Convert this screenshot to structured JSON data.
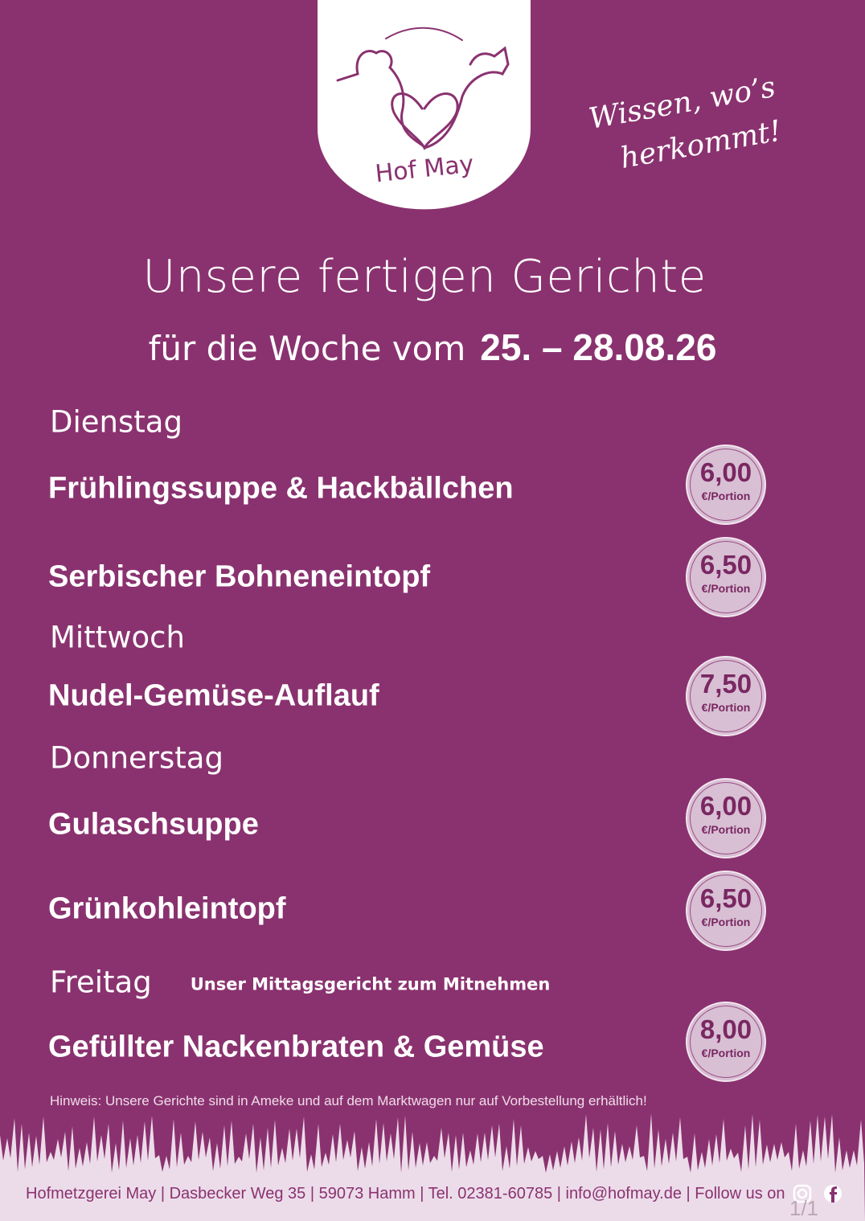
{
  "logo": {
    "name": "Hof May"
  },
  "slogan": {
    "line1": "Wissen, wo’s",
    "line2": "herkommt!"
  },
  "header": {
    "title": "Unsere fertigen Gerichte",
    "subtitle": "für die Woche vom",
    "date": "25. – 28.08.26"
  },
  "days": [
    {
      "day": "Dienstag",
      "dishes": [
        {
          "name": "Frühlingssuppe & Hackbällchen",
          "price": "6,00",
          "unit": "€/Portion"
        },
        {
          "name": "Serbischer Bohneneintopf",
          "price": "6,50",
          "unit": "€/Portion"
        }
      ]
    },
    {
      "day": "Mittwoch",
      "dishes": [
        {
          "name": "Nudel-Gemüse-Auflauf",
          "price": "7,50",
          "unit": "€/Portion"
        }
      ]
    },
    {
      "day": "Donnerstag",
      "dishes": [
        {
          "name": "Gulaschsuppe",
          "price": "6,00",
          "unit": "€/Portion"
        },
        {
          "name": "Grünkohleintopf",
          "price": "6,50",
          "unit": "€/Portion"
        }
      ]
    },
    {
      "day": "Freitag",
      "note": "Unser Mittagsgericht zum Mitnehmen",
      "dishes": [
        {
          "name": "Gefüllter Nackenbraten & Gemüse",
          "price": "8,00",
          "unit": "€/Portion"
        }
      ]
    }
  ],
  "hint": "Hinweis: Unsere Gerichte sind in Ameke und auf dem Marktwagen nur auf Vorbestellung erhältlich!",
  "footer": "Hofmetzgerei May | Dasbecker Weg 35 | 59073 Hamm | Tel. 02381-60785 | info@hofmay.de | Follow us on",
  "page": "1/1"
}
